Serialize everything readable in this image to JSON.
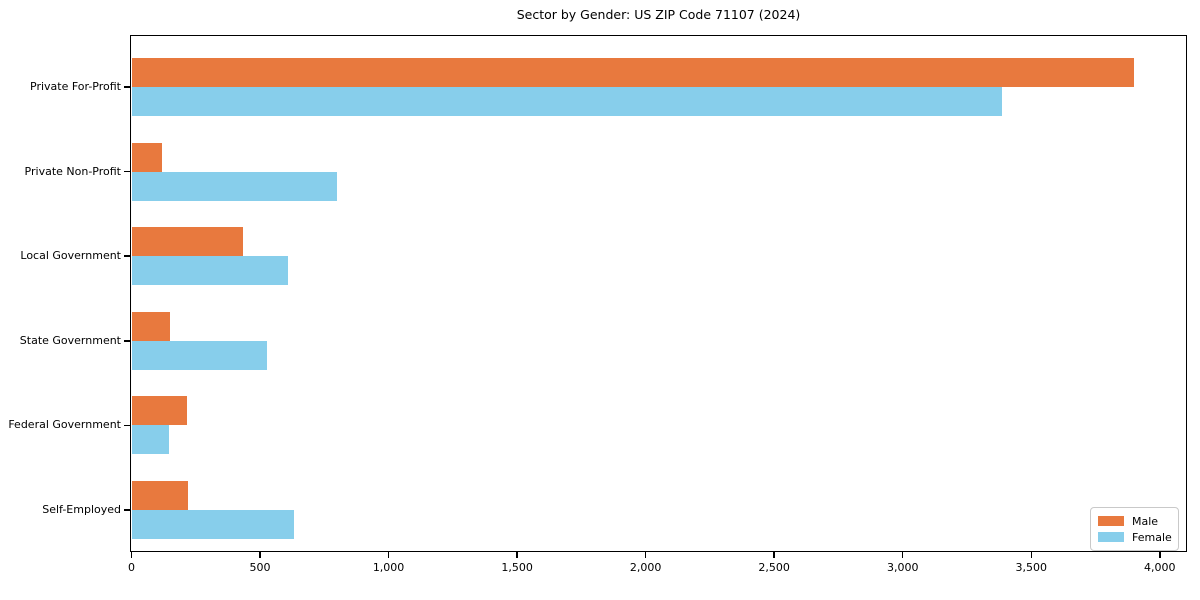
{
  "title": "Sector by Gender: US ZIP Code 71107 (2024)",
  "chart_data": {
    "type": "bar",
    "orientation": "horizontal",
    "title": "Sector by Gender: US ZIP Code 71107 (2024)",
    "xlabel": "",
    "ylabel": "",
    "categories": [
      "Private For-Profit",
      "Private Non-Profit",
      "Local Government",
      "State Government",
      "Federal Government",
      "Self-Employed"
    ],
    "series": [
      {
        "name": "Male",
        "color": "#e8793e",
        "values": [
          3900,
          120,
          435,
          150,
          215,
          220
        ]
      },
      {
        "name": "Female",
        "color": "#87ceeb",
        "values": [
          3385,
          800,
          610,
          525,
          145,
          630
        ]
      }
    ],
    "xlim": [
      0,
      4100
    ],
    "xticks": [
      0,
      500,
      1000,
      1500,
      2000,
      2500,
      3000,
      3500,
      4000
    ],
    "xtick_labels": [
      "0",
      "500",
      "1,000",
      "1,500",
      "2,000",
      "2,500",
      "3,000",
      "3,500",
      "4,000"
    ],
    "grid": false,
    "legend": {
      "position": "lower right",
      "entries": [
        "Male",
        "Female"
      ]
    }
  }
}
